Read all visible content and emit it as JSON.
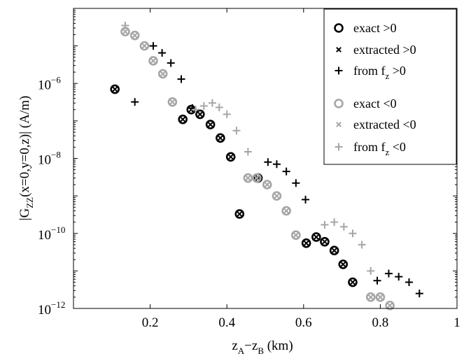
{
  "chart_data": {
    "type": "scatter",
    "title": "",
    "xlabel": "z_A−z_B (km)",
    "ylabel": "|G_ZZ(x=0,y=0,z)| (A/m)",
    "xlim": [
      0,
      1
    ],
    "ylim": [
      1e-12,
      0.0001
    ],
    "yscale": "log",
    "grid": false,
    "legend_position": "top-right",
    "x_ticks": [
      {
        "value": 0.2,
        "label": "0.2"
      },
      {
        "value": 0.4,
        "label": "0.4"
      },
      {
        "value": 0.6,
        "label": "0.6"
      },
      {
        "value": 0.8,
        "label": "0.8"
      },
      {
        "value": 1.0,
        "label": "1"
      }
    ],
    "y_ticks": [
      {
        "value": 1e-06,
        "label": "10",
        "exp": "−6"
      },
      {
        "value": 1e-08,
        "label": "10",
        "exp": "−8"
      },
      {
        "value": 1e-10,
        "label": "10",
        "exp": "−10"
      },
      {
        "value": 1e-12,
        "label": "10",
        "exp": "−12"
      }
    ],
    "series": [
      {
        "name": "exact >0",
        "legend_main": "exact >0",
        "legend_sub": "",
        "legend_tail": "",
        "marker": "circle",
        "color": "#000000",
        "x": [
          0.108,
          0.285,
          0.307,
          0.33,
          0.357,
          0.383,
          0.41,
          0.433,
          0.481,
          0.607,
          0.633,
          0.655,
          0.68,
          0.703,
          0.728
        ],
        "y": [
          7e-07,
          1.1e-07,
          2e-07,
          1.5e-07,
          8e-08,
          3.5e-08,
          1.1e-08,
          3.3e-10,
          3e-09,
          5.5e-11,
          8e-11,
          6e-11,
          3.5e-11,
          1.5e-11,
          5e-12
        ]
      },
      {
        "name": "extracted >0",
        "legend_main": "extracted >0",
        "legend_sub": "",
        "legend_tail": "",
        "marker": "x",
        "color": "#000000",
        "x": [
          0.108,
          0.285,
          0.307,
          0.33,
          0.357,
          0.383,
          0.41,
          0.433,
          0.481,
          0.607,
          0.633,
          0.655,
          0.68,
          0.703,
          0.728
        ],
        "y": [
          7e-07,
          1.1e-07,
          2e-07,
          1.5e-07,
          8e-08,
          3.5e-08,
          1.1e-08,
          3.3e-10,
          3e-09,
          5.5e-11,
          8e-11,
          6e-11,
          3.5e-11,
          1.5e-11,
          5e-12
        ]
      },
      {
        "name": "from f_z >0",
        "legend_main": "from f",
        "legend_sub": "z",
        "legend_tail": " >0",
        "marker": "plus",
        "color": "#000000",
        "x": [
          0.16,
          0.208,
          0.231,
          0.254,
          0.281,
          0.31,
          0.507,
          0.53,
          0.555,
          0.58,
          0.605,
          0.792,
          0.822,
          0.848,
          0.875,
          0.902
        ],
        "y": [
          3.2e-07,
          1e-05,
          6.5e-06,
          3.5e-06,
          1.3e-06,
          2.2e-07,
          8e-09,
          7e-09,
          4.5e-09,
          2.2e-09,
          8e-10,
          5.5e-12,
          8.5e-12,
          7e-12,
          5e-12,
          2.5e-12
        ]
      },
      {
        "name": "exact <0",
        "legend_main": "exact <0",
        "legend_sub": "",
        "legend_tail": "",
        "marker": "circle",
        "color": "#a6a6a6",
        "x": [
          0.135,
          0.16,
          0.185,
          0.208,
          0.233,
          0.258,
          0.455,
          0.478,
          0.505,
          0.53,
          0.555,
          0.58,
          0.775,
          0.8,
          0.825
        ],
        "y": [
          2.4e-05,
          1.9e-05,
          1e-05,
          4e-06,
          1.8e-06,
          3.2e-07,
          3e-09,
          3e-09,
          2e-09,
          1e-09,
          4e-10,
          9e-11,
          2e-12,
          2e-12,
          1.2e-12
        ]
      },
      {
        "name": "extracted <0",
        "legend_main": "extracted <0",
        "legend_sub": "",
        "legend_tail": "",
        "marker": "x",
        "color": "#a6a6a6",
        "x": [
          0.135,
          0.16,
          0.185,
          0.208,
          0.233,
          0.258,
          0.455,
          0.478,
          0.505,
          0.53,
          0.555,
          0.58,
          0.775,
          0.8,
          0.825
        ],
        "y": [
          2.4e-05,
          1.9e-05,
          1e-05,
          4e-06,
          1.8e-06,
          3.2e-07,
          3e-09,
          3e-09,
          2e-09,
          1e-09,
          4e-10,
          9e-11,
          2e-12,
          2e-12,
          1.2e-12
        ]
      },
      {
        "name": "from f_z <0",
        "legend_main": "from f",
        "legend_sub": "z",
        "legend_tail": " <0",
        "marker": "plus",
        "color": "#a6a6a6",
        "x": [
          0.135,
          0.318,
          0.34,
          0.362,
          0.38,
          0.4,
          0.425,
          0.455,
          0.655,
          0.68,
          0.705,
          0.728,
          0.752,
          0.775
        ],
        "y": [
          3.5e-05,
          2e-07,
          2.5e-07,
          3e-07,
          2.3e-07,
          1.5e-07,
          5.5e-08,
          1.5e-08,
          1.7e-10,
          2e-10,
          1.5e-10,
          1e-10,
          5e-11,
          1e-11
        ]
      }
    ]
  }
}
